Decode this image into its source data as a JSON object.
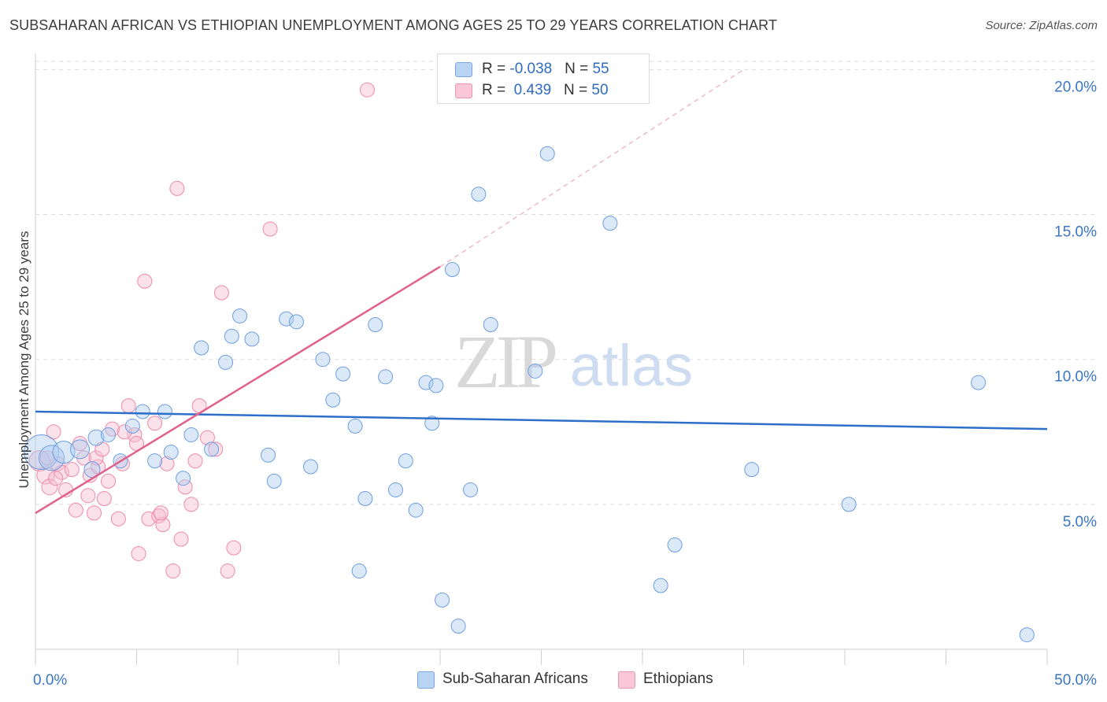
{
  "title": "SUBSAHARAN AFRICAN VS ETHIOPIAN UNEMPLOYMENT AMONG AGES 25 TO 29 YEARS CORRELATION CHART",
  "source": "Source: ZipAtlas.com",
  "watermark": {
    "zip": "ZIP",
    "atlas": "atlas"
  },
  "legend": {
    "rows": [
      {
        "r_label": "R = ",
        "r_value": "-0.038",
        "n_label": "N = ",
        "n_value": "55"
      },
      {
        "r_label": "R = ",
        "r_value": " 0.439",
        "n_label": "N = ",
        "n_value": "50"
      }
    ]
  },
  "colors": {
    "blue_fill": "#aecbef",
    "blue_stroke": "#6d9ee0",
    "blue_line": "#2d6fc8",
    "pink_fill": "#f6bcd0",
    "pink_stroke": "#ee8aab",
    "pink_line": "#e0628a",
    "axis_text": "#3a75c4",
    "grid": "#dddddd"
  },
  "chart_data": {
    "type": "scatter",
    "title": "SUBSAHARAN AFRICAN VS ETHIOPIAN UNEMPLOYMENT AMONG AGES 25 TO 29 YEARS CORRELATION CHART",
    "xlabel": "",
    "ylabel": "Unemployment Among Ages 25 to 29 years",
    "xlim": [
      0,
      50
    ],
    "ylim": [
      0,
      20.5
    ],
    "x_tick_labels": [
      "0.0%",
      "50.0%"
    ],
    "y_ticks": [
      5,
      10,
      15,
      20
    ],
    "y_tick_labels": [
      "5.0%",
      "10.0%",
      "15.0%",
      "20.0%"
    ],
    "grid": true,
    "legend_position": "top-center",
    "series": [
      {
        "name": "Sub-Saharan Africans",
        "r": -0.038,
        "n": 55,
        "trend": {
          "x": [
            0,
            50
          ],
          "y": [
            8.2,
            7.6
          ]
        },
        "points": [
          {
            "x": 0.3,
            "y": 6.8,
            "s": 22
          },
          {
            "x": 0.8,
            "y": 6.6,
            "s": 16
          },
          {
            "x": 1.4,
            "y": 6.8,
            "s": 14
          },
          {
            "x": 2.2,
            "y": 6.9,
            "s": 12
          },
          {
            "x": 2.8,
            "y": 6.2,
            "s": 10
          },
          {
            "x": 3.0,
            "y": 7.3,
            "s": 10
          },
          {
            "x": 3.6,
            "y": 7.4,
            "s": 9
          },
          {
            "x": 4.2,
            "y": 6.5,
            "s": 9
          },
          {
            "x": 4.8,
            "y": 7.7,
            "s": 9
          },
          {
            "x": 5.3,
            "y": 8.2,
            "s": 9
          },
          {
            "x": 5.9,
            "y": 6.5,
            "s": 9
          },
          {
            "x": 6.4,
            "y": 8.2,
            "s": 9
          },
          {
            "x": 6.7,
            "y": 6.8,
            "s": 9
          },
          {
            "x": 7.3,
            "y": 5.9,
            "s": 9
          },
          {
            "x": 7.7,
            "y": 7.4,
            "s": 9
          },
          {
            "x": 8.2,
            "y": 10.4,
            "s": 9
          },
          {
            "x": 8.7,
            "y": 6.9,
            "s": 9
          },
          {
            "x": 9.4,
            "y": 9.9,
            "s": 9
          },
          {
            "x": 9.7,
            "y": 10.8,
            "s": 9
          },
          {
            "x": 10.1,
            "y": 11.5,
            "s": 9
          },
          {
            "x": 10.7,
            "y": 10.7,
            "s": 9
          },
          {
            "x": 11.5,
            "y": 6.7,
            "s": 9
          },
          {
            "x": 11.8,
            "y": 5.8,
            "s": 9
          },
          {
            "x": 12.4,
            "y": 11.4,
            "s": 9
          },
          {
            "x": 12.9,
            "y": 11.3,
            "s": 9
          },
          {
            "x": 13.6,
            "y": 6.3,
            "s": 9
          },
          {
            "x": 14.2,
            "y": 10.0,
            "s": 9
          },
          {
            "x": 14.7,
            "y": 8.6,
            "s": 9
          },
          {
            "x": 15.2,
            "y": 9.5,
            "s": 9
          },
          {
            "x": 15.8,
            "y": 7.7,
            "s": 9
          },
          {
            "x": 16.0,
            "y": 2.7,
            "s": 9
          },
          {
            "x": 16.3,
            "y": 5.2,
            "s": 9
          },
          {
            "x": 16.8,
            "y": 11.2,
            "s": 9
          },
          {
            "x": 17.3,
            "y": 9.4,
            "s": 9
          },
          {
            "x": 17.8,
            "y": 5.5,
            "s": 9
          },
          {
            "x": 18.3,
            "y": 6.5,
            "s": 9
          },
          {
            "x": 18.8,
            "y": 4.8,
            "s": 9
          },
          {
            "x": 19.3,
            "y": 9.2,
            "s": 9
          },
          {
            "x": 19.8,
            "y": 9.1,
            "s": 9
          },
          {
            "x": 19.6,
            "y": 7.8,
            "s": 9
          },
          {
            "x": 20.1,
            "y": 1.7,
            "s": 9
          },
          {
            "x": 20.6,
            "y": 13.1,
            "s": 9
          },
          {
            "x": 20.9,
            "y": 0.8,
            "s": 9
          },
          {
            "x": 21.5,
            "y": 5.5,
            "s": 9
          },
          {
            "x": 21.9,
            "y": 15.7,
            "s": 9
          },
          {
            "x": 22.5,
            "y": 11.2,
            "s": 9
          },
          {
            "x": 24.7,
            "y": 9.6,
            "s": 9
          },
          {
            "x": 25.3,
            "y": 17.1,
            "s": 9
          },
          {
            "x": 28.4,
            "y": 14.7,
            "s": 9
          },
          {
            "x": 31.6,
            "y": 3.6,
            "s": 9
          },
          {
            "x": 30.9,
            "y": 2.2,
            "s": 9
          },
          {
            "x": 35.4,
            "y": 6.2,
            "s": 9
          },
          {
            "x": 40.2,
            "y": 5.0,
            "s": 9
          },
          {
            "x": 46.6,
            "y": 9.2,
            "s": 9
          },
          {
            "x": 49.0,
            "y": 0.5,
            "s": 9
          }
        ]
      },
      {
        "name": "Ethiopians",
        "r": 0.439,
        "n": 50,
        "trend": {
          "x": [
            0,
            20.0
          ],
          "y": [
            4.7,
            13.2
          ]
        },
        "trend_extension": {
          "x": [
            20.0,
            35.0
          ],
          "y": [
            13.2,
            20.0
          ]
        },
        "points": [
          {
            "x": 0.2,
            "y": 6.5,
            "s": 13
          },
          {
            "x": 0.5,
            "y": 6.0,
            "s": 11
          },
          {
            "x": 0.7,
            "y": 5.6,
            "s": 10
          },
          {
            "x": 0.9,
            "y": 7.5,
            "s": 9
          },
          {
            "x": 1.1,
            "y": 6.4,
            "s": 9
          },
          {
            "x": 1.3,
            "y": 6.1,
            "s": 9
          },
          {
            "x": 1.5,
            "y": 5.5,
            "s": 9
          },
          {
            "x": 1.8,
            "y": 6.2,
            "s": 9
          },
          {
            "x": 2.0,
            "y": 4.8,
            "s": 9
          },
          {
            "x": 2.2,
            "y": 7.1,
            "s": 9
          },
          {
            "x": 2.4,
            "y": 6.6,
            "s": 9
          },
          {
            "x": 2.7,
            "y": 6.0,
            "s": 9
          },
          {
            "x": 2.9,
            "y": 4.7,
            "s": 9
          },
          {
            "x": 3.1,
            "y": 6.3,
            "s": 9
          },
          {
            "x": 3.4,
            "y": 5.2,
            "s": 9
          },
          {
            "x": 3.6,
            "y": 5.8,
            "s": 9
          },
          {
            "x": 3.8,
            "y": 7.6,
            "s": 9
          },
          {
            "x": 4.1,
            "y": 4.5,
            "s": 9
          },
          {
            "x": 4.3,
            "y": 6.4,
            "s": 9
          },
          {
            "x": 4.6,
            "y": 8.4,
            "s": 9
          },
          {
            "x": 4.9,
            "y": 7.4,
            "s": 9
          },
          {
            "x": 5.1,
            "y": 3.3,
            "s": 9
          },
          {
            "x": 5.4,
            "y": 12.7,
            "s": 9
          },
          {
            "x": 5.6,
            "y": 4.5,
            "s": 9
          },
          {
            "x": 5.9,
            "y": 7.8,
            "s": 9
          },
          {
            "x": 6.1,
            "y": 4.6,
            "s": 9
          },
          {
            "x": 6.3,
            "y": 4.3,
            "s": 9
          },
          {
            "x": 6.5,
            "y": 6.4,
            "s": 9
          },
          {
            "x": 6.8,
            "y": 2.7,
            "s": 9
          },
          {
            "x": 7.0,
            "y": 15.9,
            "s": 9
          },
          {
            "x": 7.2,
            "y": 3.8,
            "s": 9
          },
          {
            "x": 7.4,
            "y": 5.6,
            "s": 9
          },
          {
            "x": 7.7,
            "y": 5.0,
            "s": 9
          },
          {
            "x": 7.9,
            "y": 6.5,
            "s": 9
          },
          {
            "x": 8.1,
            "y": 8.4,
            "s": 9
          },
          {
            "x": 8.5,
            "y": 7.3,
            "s": 9
          },
          {
            "x": 8.9,
            "y": 6.9,
            "s": 9
          },
          {
            "x": 9.2,
            "y": 12.3,
            "s": 9
          },
          {
            "x": 9.5,
            "y": 2.7,
            "s": 9
          },
          {
            "x": 9.8,
            "y": 3.5,
            "s": 9
          },
          {
            "x": 11.6,
            "y": 14.5,
            "s": 9
          },
          {
            "x": 16.4,
            "y": 19.3,
            "s": 9
          },
          {
            "x": 0.6,
            "y": 6.6,
            "s": 9
          },
          {
            "x": 1.0,
            "y": 5.9,
            "s": 9
          },
          {
            "x": 3.0,
            "y": 6.6,
            "s": 9
          },
          {
            "x": 5.0,
            "y": 7.1,
            "s": 9
          },
          {
            "x": 6.2,
            "y": 4.7,
            "s": 9
          },
          {
            "x": 3.3,
            "y": 6.9,
            "s": 9
          },
          {
            "x": 4.4,
            "y": 7.5,
            "s": 9
          },
          {
            "x": 2.6,
            "y": 5.3,
            "s": 9
          }
        ]
      }
    ]
  },
  "bottom_legend": [
    {
      "label": "Sub-Saharan Africans"
    },
    {
      "label": "Ethiopians"
    }
  ]
}
